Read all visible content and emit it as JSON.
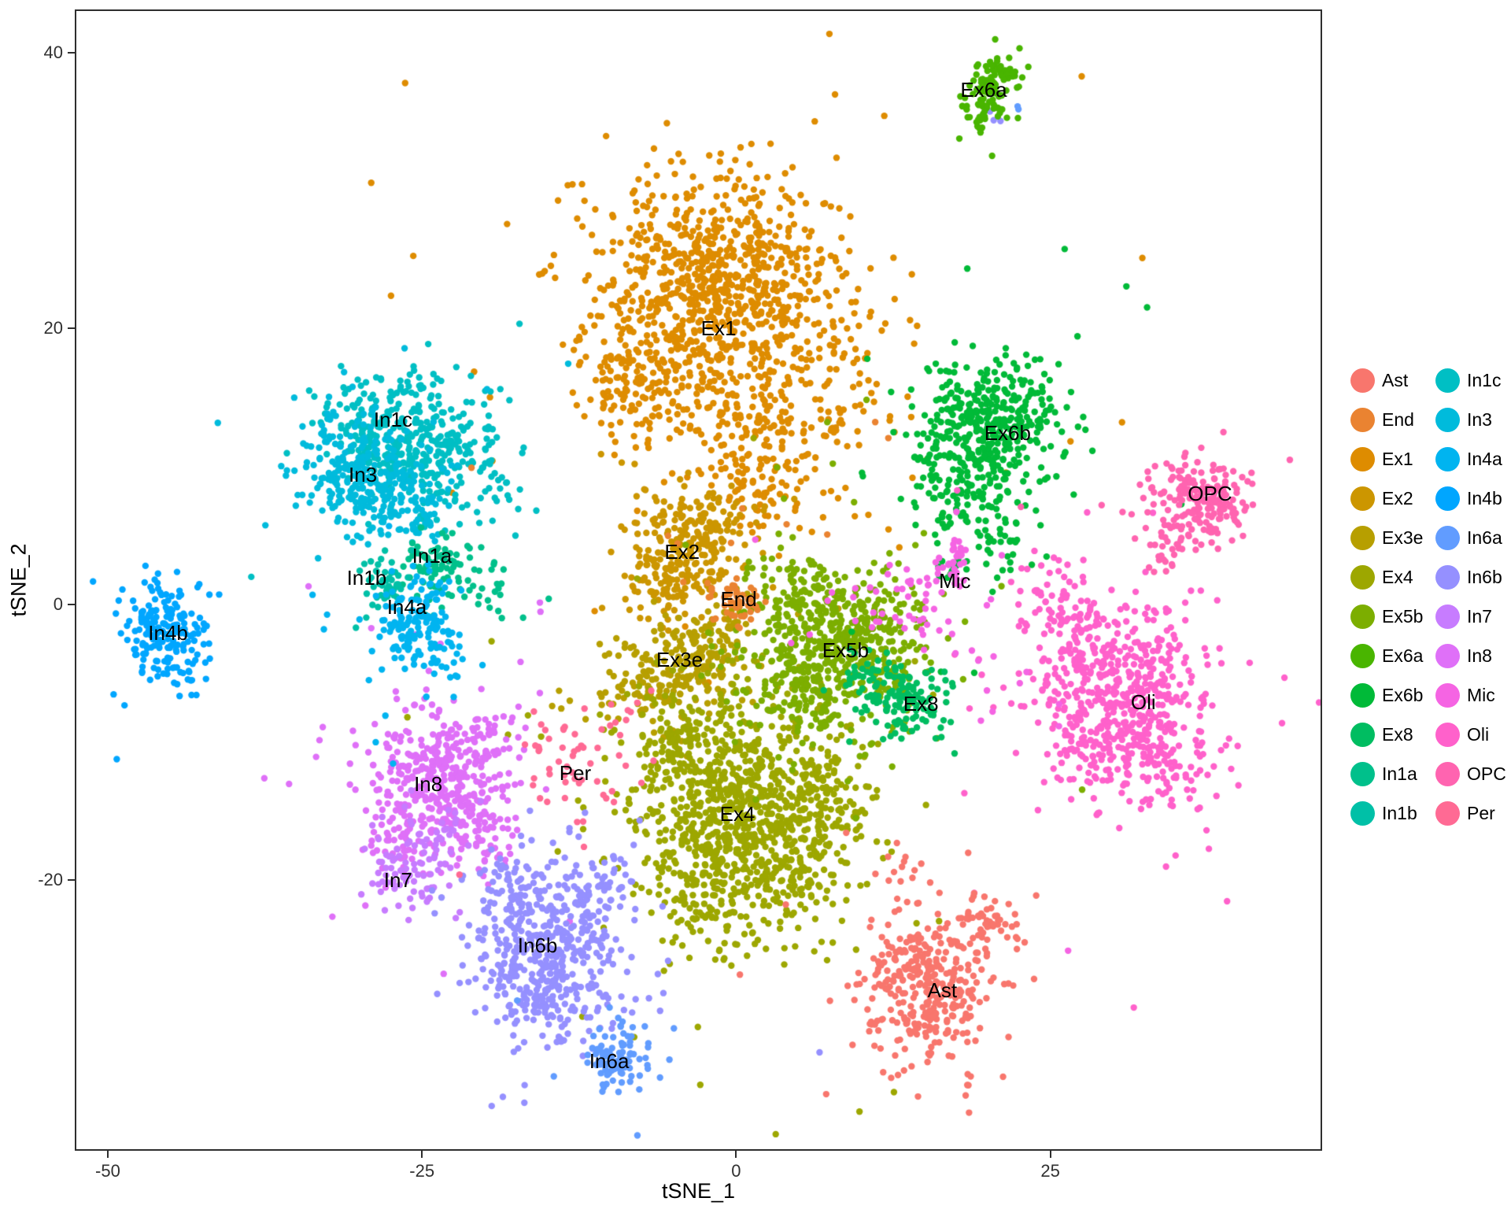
{
  "chart_data": {
    "type": "scatter",
    "title": "",
    "xlabel": "tSNE_1",
    "ylabel": "tSNE_2",
    "xlim": [
      -52.5,
      46.5
    ],
    "ylim": [
      -39.5,
      43
    ],
    "x_ticks": [
      -50,
      -25,
      0,
      25
    ],
    "y_ticks": [
      -20,
      0,
      20,
      40
    ],
    "grid": false,
    "legend_position": "right",
    "point_radius": 4.2,
    "legend_columns": [
      [
        "Ast",
        "End",
        "Ex1",
        "Ex2",
        "Ex3e",
        "Ex4",
        "Ex5b",
        "Ex6a",
        "Ex6b",
        "Ex8",
        "In1a",
        "In1b"
      ],
      [
        "In1c",
        "In3",
        "In4a",
        "In4b",
        "In6a",
        "In6b",
        "In7",
        "In8",
        "Mic",
        "Oli",
        "OPC",
        "Per"
      ]
    ],
    "colors": {
      "Ast": "#F8766D",
      "End": "#EA8331",
      "Ex1": "#DE8C00",
      "Ex2": "#CC9600",
      "Ex3e": "#B79F00",
      "Ex4": "#9DA700",
      "Ex5b": "#7CAE00",
      "Ex6a": "#49B500",
      "Ex6b": "#00BA38",
      "Ex8": "#00BD61",
      "In1a": "#00C08B",
      "In1b": "#00C0A7",
      "In1c": "#00BFC4",
      "In3": "#00BBDC",
      "In4a": "#00B4F0",
      "In4b": "#00A6FF",
      "In6a": "#619CFF",
      "In6b": "#9590FF",
      "In7": "#C77CFF",
      "In8": "#DF70F8",
      "Mic": "#F564E3",
      "Oli": "#FF61CB",
      "OPC": "#FF64B0",
      "Per": "#FF6A94"
    },
    "clusters": [
      {
        "name": "Ex1",
        "label": "Ex1",
        "label_pos": [
          -1.4,
          20.0
        ],
        "blobs": [
          [
            -1.5,
            23,
            5,
            4,
            900
          ],
          [
            -8,
            15.5,
            2.5,
            2,
            120
          ],
          [
            1,
            13,
            3,
            2.5,
            150
          ],
          [
            3,
            8.5,
            2,
            2,
            60
          ],
          [
            8,
            16,
            2.5,
            4,
            70
          ]
        ]
      },
      {
        "name": "Ex2",
        "label": "Ex2",
        "label_pos": [
          -4.3,
          3.8
        ],
        "blobs": [
          [
            -4,
            3.5,
            2.2,
            2,
            200
          ],
          [
            -2,
            6.5,
            2,
            1.5,
            70
          ],
          [
            -6,
            1,
            1.5,
            1.5,
            40
          ]
        ]
      },
      {
        "name": "Ex3e",
        "label": "Ex3e",
        "label_pos": [
          -4.5,
          -4.0
        ],
        "blobs": [
          [
            -4,
            -4.5,
            2.6,
            1.8,
            190
          ],
          [
            -8,
            -6.5,
            1.8,
            1.2,
            50
          ],
          [
            -1,
            -2,
            1.5,
            1.5,
            40
          ]
        ]
      },
      {
        "name": "Ex4",
        "label": "Ex4",
        "label_pos": [
          0.1,
          -15.2
        ],
        "blobs": [
          [
            0,
            -15,
            4.2,
            4,
            800
          ],
          [
            -4,
            -10,
            2.5,
            2,
            130
          ],
          [
            4,
            -19,
            2.5,
            2.5,
            130
          ],
          [
            -2,
            -21,
            2,
            2,
            80
          ],
          [
            7,
            -13,
            2,
            2,
            70
          ]
        ]
      },
      {
        "name": "Ex5b",
        "label": "Ex5b",
        "label_pos": [
          8.7,
          -3.3
        ],
        "blobs": [
          [
            8,
            -3.5,
            3.2,
            2.8,
            420
          ],
          [
            5,
            0.5,
            2.5,
            1.8,
            110
          ],
          [
            11.5,
            -1.5,
            2,
            2,
            70
          ],
          [
            4,
            -6,
            2,
            1.5,
            60
          ]
        ]
      },
      {
        "name": "In1c",
        "label": "In1c",
        "label_pos": [
          -27.3,
          13.4
        ],
        "blobs": [
          [
            -27,
            12.5,
            2.8,
            2.3,
            300
          ],
          [
            -23.5,
            9.5,
            1.8,
            1.8,
            70
          ],
          [
            -21,
            12,
            1.5,
            1.5,
            35
          ],
          [
            -19,
            7,
            2,
            1.5,
            20
          ]
        ]
      },
      {
        "name": "In3",
        "label": "In3",
        "label_pos": [
          -29.7,
          9.4
        ],
        "blobs": [
          [
            -29.5,
            9,
            2.3,
            1.9,
            250
          ],
          [
            -26,
            6.5,
            1.8,
            1.3,
            55
          ],
          [
            -32,
            12,
            1.5,
            1.5,
            35
          ]
        ]
      },
      {
        "name": "Ex6b",
        "label": "Ex6b",
        "label_pos": [
          21.6,
          12.4
        ],
        "blobs": [
          [
            20,
            12.5,
            2.8,
            2.6,
            380
          ],
          [
            16.5,
            8,
            1.5,
            2,
            60
          ],
          [
            21,
            5.5,
            1.2,
            2,
            50
          ],
          [
            23.5,
            15,
            1.5,
            1.5,
            40
          ],
          [
            17,
            2.5,
            0.8,
            0.8,
            12
          ]
        ]
      },
      {
        "name": "Oli",
        "label": "Oli",
        "label_pos": [
          32.4,
          -7.1
        ],
        "blobs": [
          [
            31,
            -7,
            3.2,
            3.2,
            520
          ],
          [
            27.5,
            -2.5,
            2,
            2,
            80
          ],
          [
            24.5,
            0.5,
            1.3,
            1.3,
            30
          ],
          [
            34,
            -12,
            2,
            1.8,
            60
          ],
          [
            28,
            -11,
            1.5,
            1.5,
            40
          ]
        ]
      },
      {
        "name": "In8",
        "label": "In8",
        "label_pos": [
          -24.5,
          -13.0
        ],
        "blobs": [
          [
            -24,
            -12.5,
            2.6,
            2.6,
            380
          ],
          [
            -20.5,
            -16.5,
            1.8,
            1.8,
            70
          ],
          [
            -27,
            -17.5,
            1.2,
            1.2,
            30
          ],
          [
            -19,
            -9.5,
            1.5,
            1.5,
            30
          ]
        ]
      },
      {
        "name": "In7",
        "label": "In7",
        "label_pos": [
          -26.9,
          -20.0
        ],
        "blobs": [
          [
            -26,
            -19.5,
            1.8,
            1.4,
            65
          ],
          [
            -23.5,
            -17,
            1.8,
            1.5,
            35
          ]
        ]
      },
      {
        "name": "In6b",
        "label": "In6b",
        "label_pos": [
          -15.8,
          -24.7
        ],
        "blobs": [
          [
            -15,
            -25.5,
            2.8,
            3,
            480
          ],
          [
            -11.5,
            -20.5,
            1.8,
            1.8,
            70
          ],
          [
            -18,
            -20,
            1.5,
            1.5,
            45
          ],
          [
            20.8,
            35.3,
            0.4,
            0.4,
            3
          ]
        ]
      },
      {
        "name": "Ast",
        "label": "Ast",
        "label_pos": [
          16.4,
          -28.0
        ],
        "blobs": [
          [
            15,
            -28,
            2.4,
            2.6,
            360
          ],
          [
            20.5,
            -23.5,
            1.2,
            1.2,
            50
          ],
          [
            13.5,
            -19,
            1.2,
            0.8,
            12
          ]
        ]
      },
      {
        "name": "End",
        "label": "End",
        "label_pos": [
          0.2,
          0.4
        ],
        "blobs": [
          [
            0.1,
            0.3,
            0.9,
            0.8,
            55
          ],
          [
            3,
            6,
            5,
            4,
            10
          ]
        ]
      },
      {
        "name": "Mic",
        "label": "Mic",
        "label_pos": [
          17.4,
          1.7
        ],
        "blobs": [
          [
            17.5,
            3,
            0.3,
            0.9,
            22
          ],
          [
            15.5,
            0.5,
            2.5,
            2,
            40
          ],
          [
            11,
            -1,
            3,
            2.5,
            20
          ],
          [
            20,
            -4,
            3,
            3,
            12
          ]
        ]
      },
      {
        "name": "Ex8",
        "label": "Ex8",
        "label_pos": [
          14.7,
          -7.2
        ],
        "blobs": [
          [
            13,
            -7,
            1.7,
            1.2,
            125
          ],
          [
            10.5,
            -5,
            1.5,
            1.2,
            35
          ]
        ]
      },
      {
        "name": "In1a",
        "label": "In1a",
        "label_pos": [
          -24.2,
          3.5
        ],
        "blobs": [
          [
            -24,
            3,
            1.2,
            1,
            65
          ],
          [
            -21.5,
            1.5,
            2,
            1.2,
            25
          ],
          [
            -18,
            1,
            1.5,
            1,
            12
          ]
        ]
      },
      {
        "name": "In1b",
        "label": "In1b",
        "label_pos": [
          -29.4,
          1.9
        ],
        "blobs": [
          [
            -28,
            1.5,
            0.9,
            0.9,
            50
          ]
        ]
      },
      {
        "name": "In4a",
        "label": "In4a",
        "label_pos": [
          -26.2,
          -0.2
        ],
        "blobs": [
          [
            -25.5,
            -1.5,
            1.7,
            1.7,
            150
          ],
          [
            -23,
            -3.5,
            1.2,
            1,
            20
          ]
        ]
      },
      {
        "name": "In4b",
        "label": "In4b",
        "label_pos": [
          -45.2,
          -2.1
        ],
        "blobs": [
          [
            -45.5,
            -2,
            1.7,
            1.9,
            190
          ],
          [
            -43,
            -5,
            1,
            1,
            12
          ]
        ]
      },
      {
        "name": "In6a",
        "label": "In6a",
        "label_pos": [
          -10.1,
          -33.1
        ],
        "blobs": [
          [
            -9.5,
            -33,
            1.2,
            1.1,
            105
          ],
          [
            22.2,
            35.7,
            0.3,
            0.3,
            2
          ]
        ]
      },
      {
        "name": "Per",
        "label": "Per",
        "label_pos": [
          -12.8,
          -12.2
        ],
        "blobs": [
          [
            -12,
            -12,
            2.2,
            1.8,
            40
          ],
          [
            -15,
            -9.5,
            1.5,
            1.2,
            12
          ],
          [
            -9,
            -8,
            1,
            1,
            8
          ]
        ]
      },
      {
        "name": "Ex6a",
        "label": "Ex6a",
        "label_pos": [
          19.7,
          37.3
        ],
        "blobs": [
          [
            20,
            36.6,
            0.9,
            1.1,
            70
          ],
          [
            21,
            38.3,
            0.7,
            0.8,
            45
          ],
          [
            19.3,
            35,
            0.5,
            0.5,
            12
          ]
        ]
      },
      {
        "name": "OPC",
        "label": "OPC",
        "label_pos": [
          37.7,
          8.0
        ],
        "blobs": [
          [
            37,
            7.5,
            2.1,
            1.4,
            200
          ],
          [
            34.5,
            5,
            1,
            1,
            20
          ],
          [
            33.5,
            3,
            0.6,
            0.6,
            8
          ]
        ]
      }
    ]
  }
}
